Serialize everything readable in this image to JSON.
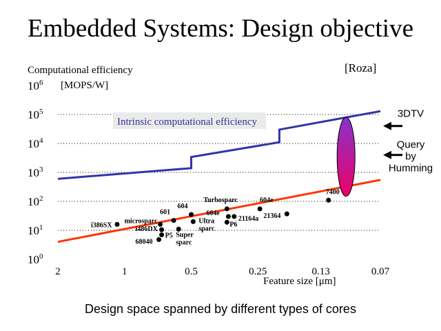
{
  "slide": {
    "title": "Embedded Systems: Design objective",
    "caption": "Design space spanned by different types of cores",
    "source": "[Roza]"
  },
  "chart_data": {
    "type": "scatter",
    "ylabel": "Computational efficiency",
    "yunit": "[MOPS/W]",
    "xlabel": "Feature size [μm]",
    "yscale": "log",
    "ylim": [
      1,
      1000000
    ],
    "y_ticks": [
      {
        "value": 1,
        "base": "10",
        "exp": "0"
      },
      {
        "value": 10,
        "base": "10",
        "exp": "1"
      },
      {
        "value": 100,
        "base": "10",
        "exp": "2"
      },
      {
        "value": 1000,
        "base": "10",
        "exp": "3"
      },
      {
        "value": 10000,
        "base": "10",
        "exp": "4"
      },
      {
        "value": 100000,
        "base": "10",
        "exp": "5"
      },
      {
        "value": 1000000,
        "base": "10",
        "exp": "6"
      }
    ],
    "x_ticks": [
      {
        "value": 2,
        "label": "2"
      },
      {
        "value": 1,
        "label": "1"
      },
      {
        "value": 0.5,
        "label": "0.5"
      },
      {
        "value": 0.25,
        "label": "0.25"
      },
      {
        "value": 0.13,
        "label": "0.13"
      },
      {
        "value": 0.07,
        "label": "0.07"
      }
    ],
    "grid": "dotted-horizontal",
    "intrinsic_line": {
      "label": "Intrinsic computational efficiency",
      "color": "#3333aa",
      "points": [
        [
          2,
          600
        ],
        [
          0.5,
          1400
        ],
        [
          0.5,
          3400
        ],
        [
          0.2,
          11000
        ],
        [
          0.2,
          30000
        ],
        [
          0.07,
          130000
        ]
      ]
    },
    "processor_trend": {
      "color": "#ff3300",
      "points": [
        [
          2,
          4
        ],
        [
          0.07,
          550
        ]
      ]
    },
    "processors": [
      {
        "name": "i386SX",
        "x": 1.08,
        "y": 16
      },
      {
        "name": "microsparc",
        "x": 0.69,
        "y": 16
      },
      {
        "name": "601",
        "x": 0.6,
        "y": 22
      },
      {
        "name": "604",
        "x": 0.5,
        "y": 35
      },
      {
        "name": "Ultra sparc",
        "x": 0.49,
        "y": 20
      },
      {
        "name": "Turbosparc",
        "x": 0.345,
        "y": 55
      },
      {
        "name": "604e",
        "x": 0.34,
        "y": 30
      },
      {
        "name": "21164a",
        "x": 0.32,
        "y": 30
      },
      {
        "name": "P6",
        "x": 0.345,
        "y": 19
      },
      {
        "name": "604e",
        "x": 0.245,
        "y": 55
      },
      {
        "name": "21364",
        "x": 0.185,
        "y": 37
      },
      {
        "name": "7400",
        "x": 0.12,
        "y": 110
      },
      {
        "name": "i486DX",
        "x": 0.68,
        "y": 10.5
      },
      {
        "name": "P5",
        "x": 0.68,
        "y": 7
      },
      {
        "name": "Super sparc",
        "x": 0.57,
        "y": 11
      },
      {
        "name": "68040",
        "x": 0.7,
        "y": 4.8
      }
    ],
    "application_range": {
      "colors": [
        "#8833cc",
        "#ee0066"
      ],
      "x": 0.1,
      "y_top": 80000,
      "y_bottom": 150
    },
    "applications": [
      {
        "name": "3DTV",
        "y": 40000
      },
      {
        "name": "Query by Humming",
        "y": 4000
      }
    ]
  }
}
